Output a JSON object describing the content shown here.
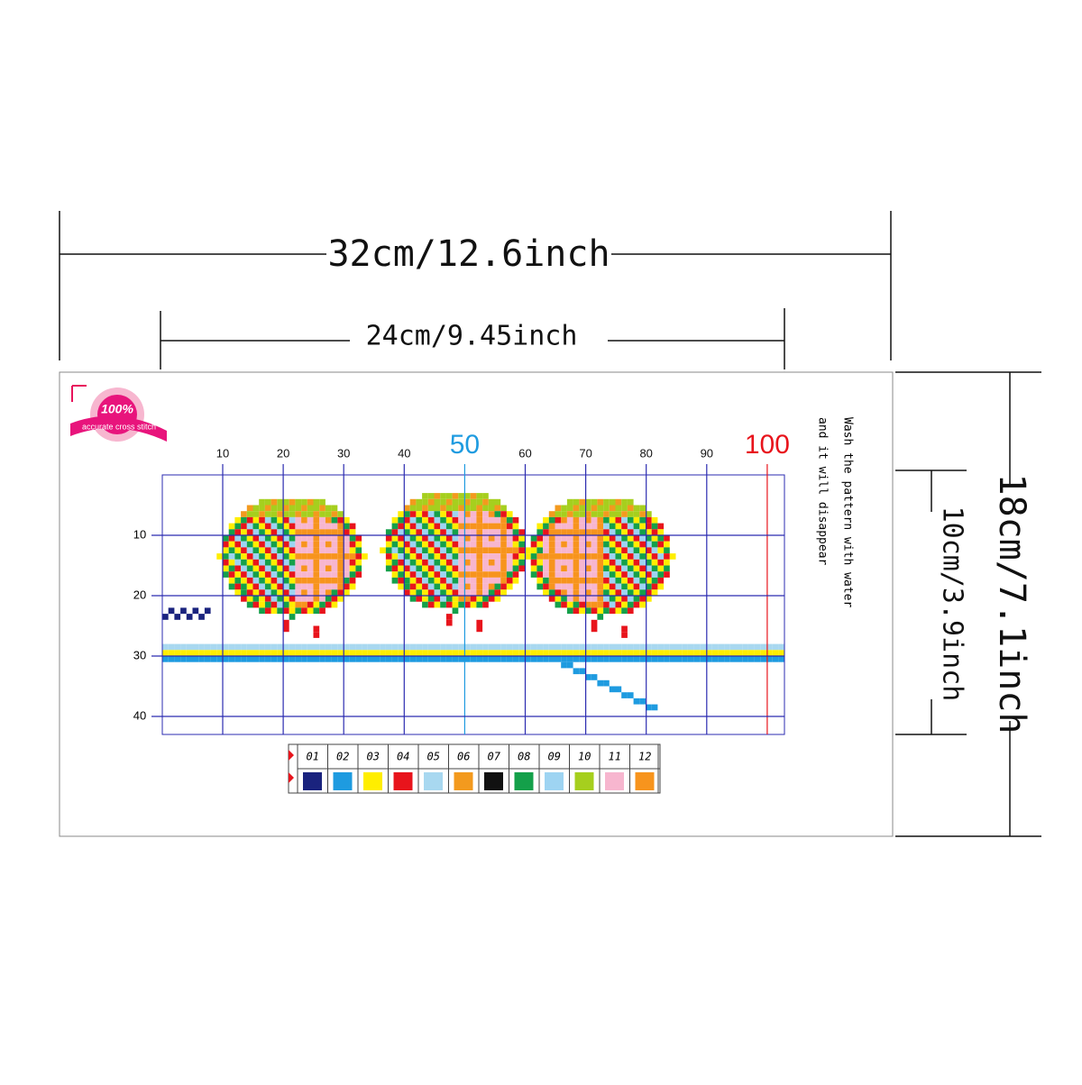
{
  "dimensions": {
    "outer_width": "32cm/12.6inch",
    "inner_width": "24cm/9.45inch",
    "outer_height": "18cm/7.1inch",
    "inner_height": "10cm/3.9inch"
  },
  "badge": {
    "percent": "100%",
    "text": "accurate cross stitch"
  },
  "note": {
    "lines": [
      "Wash the pattern with water",
      "and it will disappear"
    ]
  },
  "grid": {
    "x_labels": [
      "10",
      "20",
      "30",
      "40",
      "50",
      "60",
      "70",
      "80",
      "90",
      "100"
    ],
    "y_labels": [
      "10",
      "20",
      "30",
      "40"
    ]
  },
  "legend": {
    "codes": [
      "01",
      "02",
      "03",
      "04",
      "05",
      "06",
      "07",
      "08",
      "09",
      "10",
      "11",
      "12"
    ],
    "colors": [
      "#1a237e",
      "#1e9be0",
      "#ffee00",
      "#e8141c",
      "#a8d8f0",
      "#f39a1e",
      "#111111",
      "#14a04a",
      "#9ed4f2",
      "#a6cf1e",
      "#f7b6cf",
      "#f7941d"
    ]
  }
}
